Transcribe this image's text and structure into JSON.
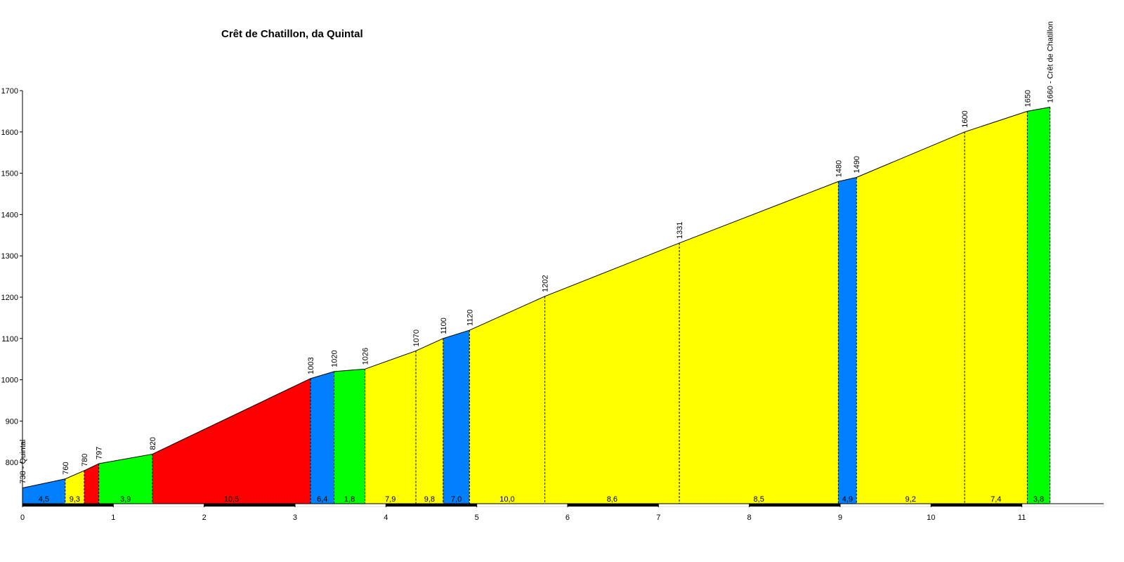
{
  "chart_data": {
    "type": "area",
    "title": "Crêt de Chatillon, da Quintal",
    "x": [
      0,
      0.47,
      0.68,
      0.84,
      1.43,
      3.17,
      3.43,
      3.77,
      4.33,
      4.63,
      4.92,
      5.75,
      7.23,
      8.98,
      9.18,
      10.37,
      11.06,
      11.31
    ],
    "values": [
      738,
      760,
      780,
      797,
      820,
      1003,
      1020,
      1026,
      1070,
      1100,
      1120,
      1202,
      1331,
      1480,
      1490,
      1600,
      1650,
      1660
    ],
    "value_labels": [
      "738 - Quintal",
      "760",
      "780",
      "797",
      "820",
      "1003",
      "1020",
      "1026",
      "1070",
      "1100",
      "1120",
      "1202",
      "1331",
      "1480",
      "1490",
      "1600",
      "1650",
      "1660 - Crêt de Chatillon"
    ],
    "segment_labels": [
      "4,5",
      "9,3",
      null,
      "3,9",
      "10,5",
      "6,4",
      "1,8",
      "7,9",
      "9,8",
      "7,0",
      "10,0",
      "8,6",
      "8,5",
      "4,9",
      "9,2",
      "7,4",
      "3,8"
    ],
    "segment_colors": [
      "#0080ff",
      "#ffff00",
      "#ff0000",
      "#00ff00",
      "#ff0000",
      "#0080ff",
      "#00ff00",
      "#ffff00",
      "#ffff00",
      "#0080ff",
      "#ffff00",
      "#ffff00",
      "#ffff00",
      "#0080ff",
      "#ffff00",
      "#ffff00",
      "#00ff00"
    ],
    "xlim": [
      0,
      11.9
    ],
    "xticks": [
      0,
      1,
      2,
      3,
      4,
      5,
      6,
      7,
      8,
      9,
      10,
      11
    ],
    "ylim": [
      700,
      1700
    ],
    "yticks": [
      800,
      900,
      1000,
      1100,
      1200,
      1300,
      1400,
      1500,
      1600,
      1700
    ]
  }
}
